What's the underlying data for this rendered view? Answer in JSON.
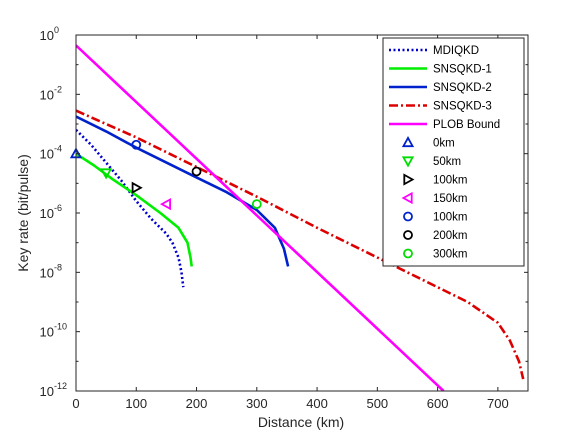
{
  "chart_data": {
    "type": "line",
    "title": "",
    "xlabel": "Distance (km)",
    "ylabel": "Key rate (bit/pulse)",
    "xlim": [
      0,
      750
    ],
    "ylim_log10": [
      -12,
      0
    ],
    "yscale": "log",
    "x_ticks": [
      0,
      100,
      200,
      300,
      400,
      500,
      600,
      700
    ],
    "x_tick_labels": [
      "0",
      "100",
      "200",
      "300",
      "400",
      "500",
      "600",
      "700"
    ],
    "y_ticks_log10": [
      0,
      -2,
      -4,
      -6,
      -8,
      -10,
      -12
    ],
    "y_tick_base": "10",
    "y_tick_exponents": [
      "0",
      "-2",
      "-4",
      "-6",
      "-8",
      "-10",
      "-12"
    ],
    "grid": false,
    "legend_position": "top-right",
    "series": [
      {
        "name": "MDIQKD",
        "color": "#0000cc",
        "dash": "dotted",
        "x": [
          0,
          25,
          50,
          75,
          100,
          125,
          150,
          160,
          170,
          175,
          178
        ],
        "log10_y": [
          -3.2,
          -3.7,
          -4.3,
          -4.9,
          -5.6,
          -6.2,
          -6.7,
          -7.0,
          -7.5,
          -8.0,
          -8.5
        ]
      },
      {
        "name": "SNSQKD-1",
        "color": "#00ee00",
        "dash": "solid",
        "x": [
          0,
          30,
          60,
          100,
          140,
          170,
          185,
          190,
          192
        ],
        "log10_y": [
          -4.0,
          -4.4,
          -4.85,
          -5.4,
          -6.0,
          -6.5,
          -7.0,
          -7.5,
          -7.8
        ]
      },
      {
        "name": "SNSQKD-2",
        "color": "#0022cc",
        "dash": "solid",
        "x": [
          0,
          50,
          100,
          150,
          200,
          250,
          300,
          330,
          345,
          352
        ],
        "log10_y": [
          -2.75,
          -3.25,
          -3.8,
          -4.3,
          -4.8,
          -5.3,
          -5.9,
          -6.5,
          -7.2,
          -7.8
        ]
      },
      {
        "name": "SNSQKD-3",
        "color": "#dd0000",
        "dash": "dashdot",
        "x": [
          0,
          100,
          200,
          300,
          400,
          500,
          600,
          650,
          700,
          720,
          735,
          742
        ],
        "log10_y": [
          -2.55,
          -3.45,
          -4.45,
          -5.45,
          -6.5,
          -7.5,
          -8.5,
          -9.0,
          -9.7,
          -10.3,
          -11.0,
          -11.6
        ]
      },
      {
        "name": "PLOB Bound",
        "color": "#ff00ff",
        "dash": "solid",
        "x": [
          0,
          610
        ],
        "log10_y": [
          -0.35,
          -12.0
        ]
      }
    ],
    "markers": [
      {
        "name": "0km",
        "shape": "triangle-up",
        "color": "#0022cc",
        "x": 0,
        "log10_y": -4.0
      },
      {
        "name": "50km",
        "shape": "triangle-down",
        "color": "#00dd00",
        "x": 50,
        "log10_y": -4.65
      },
      {
        "name": "100km",
        "shape": "triangle-right",
        "color": "#000000",
        "x": 100,
        "log10_y": -5.15
      },
      {
        "name": "150km",
        "shape": "triangle-left",
        "color": "#ff00ff",
        "x": 150,
        "log10_y": -5.7
      },
      {
        "name": "100km",
        "shape": "circle",
        "color": "#0022cc",
        "x": 100,
        "log10_y": -3.7
      },
      {
        "name": "200km",
        "shape": "circle",
        "color": "#000000",
        "x": 200,
        "log10_y": -4.6
      },
      {
        "name": "300km",
        "shape": "circle",
        "color": "#00dd00",
        "x": 300,
        "log10_y": -5.7
      }
    ]
  }
}
